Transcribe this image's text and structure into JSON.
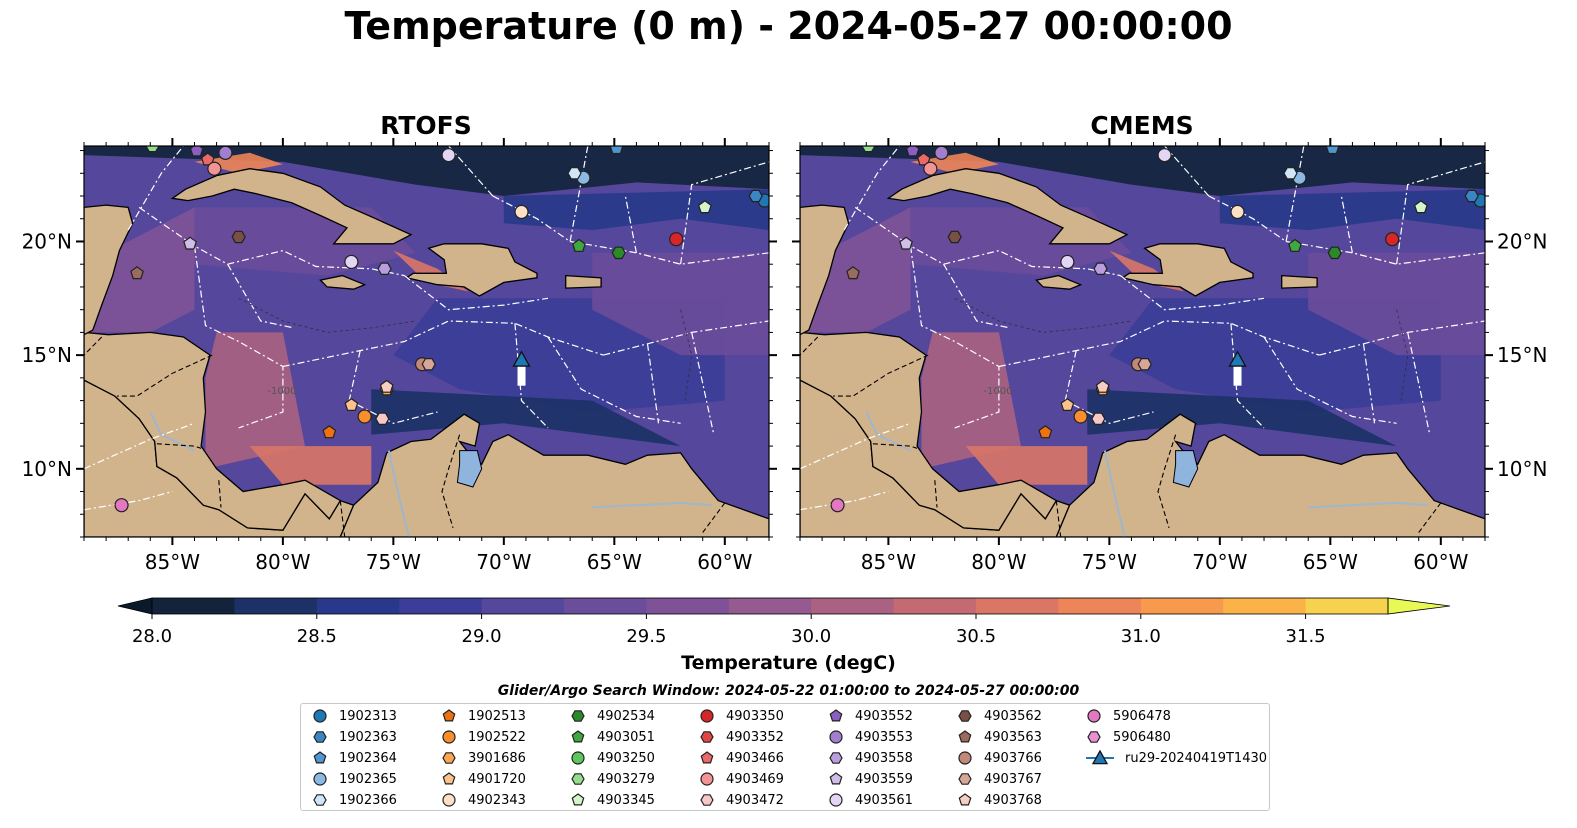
{
  "title": "Temperature (0 m) - 2024-05-27 00:00:00",
  "panels": [
    {
      "title": "RTOFS"
    },
    {
      "title": "CMEMS"
    }
  ],
  "lon_ticks": [
    "85°W",
    "80°W",
    "75°W",
    "70°W",
    "65°W",
    "60°W"
  ],
  "lat_ticks": [
    "20°N",
    "15°N",
    "10°N"
  ],
  "extent": {
    "lon": [
      -89,
      -58
    ],
    "lat": [
      7,
      24.2
    ]
  },
  "colorbar": {
    "label": "Temperature (degC)",
    "ticks": [
      "28.0",
      "28.5",
      "29.0",
      "29.5",
      "30.0",
      "30.5",
      "31.0",
      "31.5"
    ],
    "min": 28.0,
    "max": 31.75,
    "step": 0.25,
    "colors": [
      "#12233b",
      "#1c3166",
      "#28388a",
      "#3b3d98",
      "#55479c",
      "#6a4d9b",
      "#7f5297",
      "#955a8f",
      "#ab6282",
      "#c36a73",
      "#d97666",
      "#ed8558",
      "#f89a4d",
      "#fbb349",
      "#f7d24e"
    ],
    "under_color": "#0b1a2a",
    "over_color": "#e8f855"
  },
  "search_window": "Glider/Argo Search Window: 2024-05-22 01:00:00 to 2024-05-27 00:00:00",
  "bathymetry_label": "-1000",
  "colors": {
    "land": "#d2b48c",
    "lake": "#8fb4de",
    "river": "#9fb6cc"
  },
  "legend": [
    {
      "id": "1902313",
      "marker": "circle",
      "color": "#1f77b4"
    },
    {
      "id": "1902363",
      "marker": "hexagon",
      "color": "#3a86c4"
    },
    {
      "id": "1902364",
      "marker": "pentagon",
      "color": "#4f95d1"
    },
    {
      "id": "1902365",
      "marker": "circle",
      "color": "#8ab9e3"
    },
    {
      "id": "1902366",
      "marker": "hexagon",
      "color": "#d2e6f7"
    },
    {
      "id": "1902513",
      "marker": "pentagon",
      "color": "#ee7210"
    },
    {
      "id": "1902522",
      "marker": "circle",
      "color": "#fb8e2c"
    },
    {
      "id": "3901686",
      "marker": "hexagon",
      "color": "#fca554"
    },
    {
      "id": "4901720",
      "marker": "pentagon",
      "color": "#fcc28e"
    },
    {
      "id": "4902343",
      "marker": "circle",
      "color": "#fde0c5"
    },
    {
      "id": "4902534",
      "marker": "hexagon",
      "color": "#2a8a2a"
    },
    {
      "id": "4903051",
      "marker": "pentagon",
      "color": "#3fa83f"
    },
    {
      "id": "4903250",
      "marker": "circle",
      "color": "#5dc75d"
    },
    {
      "id": "4903279",
      "marker": "hexagon",
      "color": "#95dd8e"
    },
    {
      "id": "4903345",
      "marker": "pentagon",
      "color": "#d4f4cc"
    },
    {
      "id": "4903350",
      "marker": "circle",
      "color": "#d62728"
    },
    {
      "id": "4903352",
      "marker": "hexagon",
      "color": "#e04545"
    },
    {
      "id": "4903466",
      "marker": "pentagon",
      "color": "#ea6868"
    },
    {
      "id": "4903469",
      "marker": "circle",
      "color": "#f39494"
    },
    {
      "id": "4903472",
      "marker": "hexagon",
      "color": "#f8c8c8"
    },
    {
      "id": "4903552",
      "marker": "pentagon",
      "color": "#8a5fc0"
    },
    {
      "id": "4903553",
      "marker": "circle",
      "color": "#a17fce"
    },
    {
      "id": "4903558",
      "marker": "hexagon",
      "color": "#b99ddc"
    },
    {
      "id": "4903559",
      "marker": "pentagon",
      "color": "#d0bdea"
    },
    {
      "id": "4903561",
      "marker": "circle",
      "color": "#e3d5f4"
    },
    {
      "id": "4903562",
      "marker": "hexagon",
      "color": "#7a4f44"
    },
    {
      "id": "4903563",
      "marker": "pentagon",
      "color": "#9a6b5e"
    },
    {
      "id": "4903766",
      "marker": "circle",
      "color": "#c28878"
    },
    {
      "id": "4903767",
      "marker": "hexagon",
      "color": "#d6a696"
    },
    {
      "id": "4903768",
      "marker": "pentagon",
      "color": "#f6cec2"
    },
    {
      "id": "5906478",
      "marker": "circle",
      "color": "#e377c2"
    },
    {
      "id": "5906480",
      "marker": "hexagon",
      "color": "#ea8fd0"
    },
    {
      "id": "ru29-20240419T1430",
      "marker": "triangle-line",
      "color": "#1f77b4"
    }
  ],
  "floats": [
    {
      "id": "1902313",
      "lon": -58.2,
      "lat": 21.8
    },
    {
      "id": "1902363",
      "lon": -58.6,
      "lat": 22.0
    },
    {
      "id": "1902364",
      "lon": -64.9,
      "lat": 24.1
    },
    {
      "id": "1902365",
      "lon": -66.4,
      "lat": 22.8
    },
    {
      "id": "1902366",
      "lon": -66.8,
      "lat": 23.0
    },
    {
      "id": "1902513",
      "lon": -77.9,
      "lat": 11.6
    },
    {
      "id": "1902522",
      "lon": -76.3,
      "lat": 12.3
    },
    {
      "id": "3901686",
      "lon": -75.3,
      "lat": 13.5
    },
    {
      "id": "4901720",
      "lon": -76.9,
      "lat": 12.8
    },
    {
      "id": "4902343",
      "lon": -69.2,
      "lat": 21.3
    },
    {
      "id": "4902534",
      "lon": -64.8,
      "lat": 19.5
    },
    {
      "id": "4903051",
      "lon": -66.6,
      "lat": 19.8
    },
    {
      "id": "4903279",
      "lon": -85.9,
      "lat": 24.2
    },
    {
      "id": "4903345",
      "lon": -60.9,
      "lat": 21.5
    },
    {
      "id": "4903350",
      "lon": -62.2,
      "lat": 20.1
    },
    {
      "id": "4903466",
      "lon": -83.4,
      "lat": 23.6
    },
    {
      "id": "4903469",
      "lon": -83.1,
      "lat": 23.2
    },
    {
      "id": "4903472",
      "lon": -75.5,
      "lat": 12.2
    },
    {
      "id": "4903552",
      "lon": -83.9,
      "lat": 24.0
    },
    {
      "id": "4903559",
      "lon": -84.2,
      "lat": 19.9
    },
    {
      "id": "4903558",
      "lon": -75.4,
      "lat": 18.8
    },
    {
      "id": "4903561",
      "lon": -72.5,
      "lat": 23.8
    },
    {
      "id": "4903562",
      "lon": -82.0,
      "lat": 20.2
    },
    {
      "id": "4903563",
      "lon": -86.6,
      "lat": 18.6
    },
    {
      "id": "4903766",
      "lon": -73.7,
      "lat": 14.6
    },
    {
      "id": "4903767",
      "lon": -73.4,
      "lat": 14.6
    },
    {
      "id": "4903768",
      "lon": -75.3,
      "lat": 13.6
    },
    {
      "id": "5906478",
      "lon": -87.3,
      "lat": 8.4
    },
    {
      "id": "4903561",
      "lon": -76.9,
      "lat": 19.1
    },
    {
      "id": "4903553",
      "lon": -82.6,
      "lat": 23.9
    }
  ],
  "glider": {
    "id": "ru29-20240419T1430",
    "lon": -69.2,
    "lat": 14.8
  }
}
